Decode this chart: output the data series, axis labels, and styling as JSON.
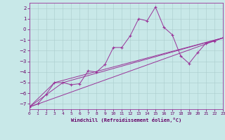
{
  "xlabel": "Windchill (Refroidissement éolien,°C)",
  "ylabel": "",
  "background_color": "#c8e8e8",
  "line_color": "#993399",
  "xlim": [
    0,
    23
  ],
  "ylim": [
    -7.5,
    2.5
  ],
  "yticks": [
    2,
    1,
    0,
    -1,
    -2,
    -3,
    -4,
    -5,
    -6,
    -7
  ],
  "xticks": [
    0,
    1,
    2,
    3,
    4,
    5,
    6,
    7,
    8,
    9,
    10,
    11,
    12,
    13,
    14,
    15,
    16,
    17,
    18,
    19,
    20,
    21,
    22,
    23
  ],
  "grid_color": "#aacccc",
  "series": [
    [
      0.0,
      -7.3
    ],
    [
      1.0,
      -7.0
    ],
    [
      2.0,
      -6.1
    ],
    [
      3.0,
      -5.0
    ],
    [
      4.0,
      -5.0
    ],
    [
      5.0,
      -5.2
    ],
    [
      6.0,
      -5.1
    ],
    [
      7.0,
      -3.9
    ],
    [
      8.0,
      -4.0
    ],
    [
      9.0,
      -3.3
    ],
    [
      10.0,
      -1.7
    ],
    [
      11.0,
      -1.7
    ],
    [
      12.0,
      -0.6
    ],
    [
      13.0,
      1.0
    ],
    [
      14.0,
      0.8
    ],
    [
      15.0,
      2.1
    ],
    [
      16.0,
      0.2
    ],
    [
      17.0,
      -0.5
    ],
    [
      18.0,
      -2.5
    ],
    [
      19.0,
      -3.2
    ],
    [
      20.0,
      -2.2
    ],
    [
      21.0,
      -1.3
    ],
    [
      22.0,
      -1.1
    ],
    [
      23.0,
      -0.8
    ]
  ],
  "line1": [
    [
      0.0,
      -7.3
    ],
    [
      23.0,
      -0.8
    ]
  ],
  "line2": [
    [
      0.0,
      -7.3
    ],
    [
      3.0,
      -5.0
    ],
    [
      23.0,
      -0.8
    ]
  ],
  "line3": [
    [
      0.0,
      -7.3
    ],
    [
      4.0,
      -5.0
    ],
    [
      23.0,
      -0.8
    ]
  ]
}
